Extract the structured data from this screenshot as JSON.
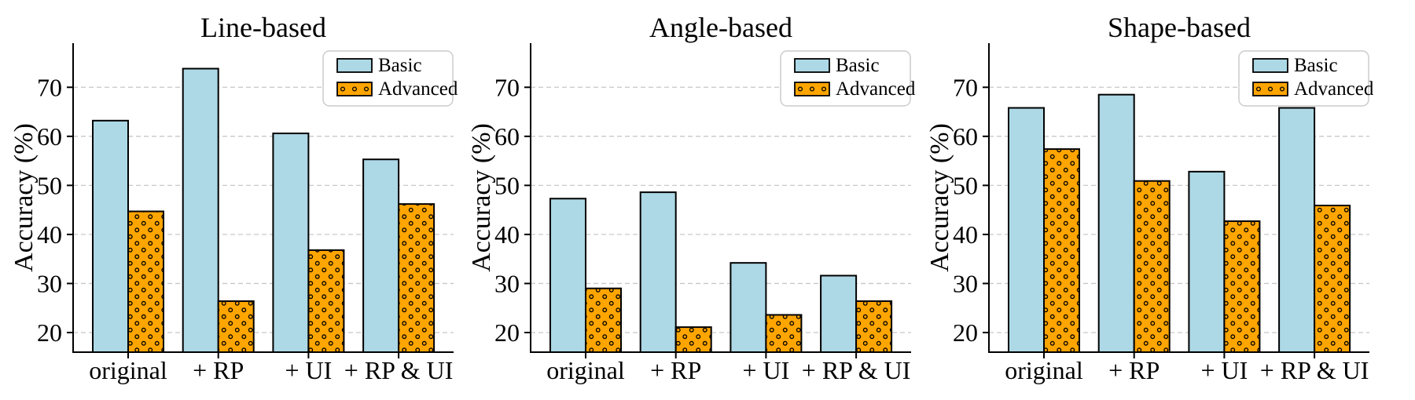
{
  "figure": {
    "background": "#ffffff",
    "n_subplots": 3
  },
  "styles": {
    "basic_color": "#ADD8E6",
    "advanced_color": "#FFA500",
    "bar_edge_color": "#000000",
    "grid_color": "#c8c8c8",
    "axis_color": "#000000",
    "legend_border_color": "#cccccc",
    "legend_fill": "#ffffff",
    "hatch_dot_color": "#000000"
  },
  "chart_data": [
    {
      "type": "bar",
      "title": "Line-based",
      "ylabel": "Accuracy (%)",
      "categories": [
        "original",
        "+ RP",
        "+ UI",
        "+ RP & UI"
      ],
      "series": [
        {
          "name": "Basic",
          "color": "#ADD8E6",
          "hatch": "none",
          "values": [
            63.2,
            73.8,
            60.6,
            55.3
          ]
        },
        {
          "name": "Advanced",
          "color": "#FFA500",
          "hatch": "dots",
          "values": [
            44.7,
            26.4,
            36.8,
            46.2
          ]
        }
      ],
      "ylim": [
        16,
        79
      ],
      "yticks": [
        20,
        30,
        40,
        50,
        60,
        70
      ],
      "grid": "horizontal-dashed",
      "legend_position": "upper-right"
    },
    {
      "type": "bar",
      "title": "Angle-based",
      "ylabel": "Accuracy (%)",
      "categories": [
        "original",
        "+ RP",
        "+ UI",
        "+ RP & UI"
      ],
      "series": [
        {
          "name": "Basic",
          "color": "#ADD8E6",
          "hatch": "none",
          "values": [
            47.3,
            48.6,
            34.2,
            31.6
          ]
        },
        {
          "name": "Advanced",
          "color": "#FFA500",
          "hatch": "dots",
          "values": [
            29.0,
            21.1,
            23.6,
            26.4
          ]
        }
      ],
      "ylim": [
        16,
        79
      ],
      "yticks": [
        20,
        30,
        40,
        50,
        60,
        70
      ],
      "grid": "horizontal-dashed",
      "legend_position": "upper-right"
    },
    {
      "type": "bar",
      "title": "Shape-based",
      "ylabel": "Accuracy (%)",
      "categories": [
        "original",
        "+ RP",
        "+ UI",
        "+ RP & UI"
      ],
      "series": [
        {
          "name": "Basic",
          "color": "#ADD8E6",
          "hatch": "none",
          "values": [
            65.8,
            68.5,
            52.8,
            65.8
          ]
        },
        {
          "name": "Advanced",
          "color": "#FFA500",
          "hatch": "dots",
          "values": [
            57.4,
            50.9,
            42.7,
            45.9
          ]
        }
      ],
      "ylim": [
        16,
        79
      ],
      "yticks": [
        20,
        30,
        40,
        50,
        60,
        70
      ],
      "grid": "horizontal-dashed",
      "legend_position": "upper-right"
    }
  ]
}
